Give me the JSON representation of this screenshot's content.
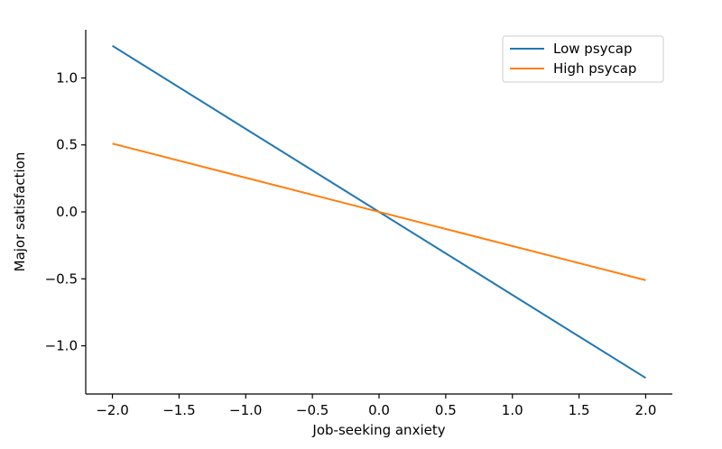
{
  "chart_data": {
    "type": "line",
    "xlabel": "Job-seeking anxiety",
    "ylabel": "Major satisfaction",
    "xlim": [
      -2.2,
      2.2
    ],
    "ylim": [
      -1.36,
      1.36
    ],
    "xticks": [
      -2.0,
      -1.5,
      -1.0,
      -0.5,
      0.0,
      0.5,
      1.0,
      1.5,
      2.0
    ],
    "xtick_labels": [
      "−2.0",
      "−1.5",
      "−1.0",
      "−0.5",
      "0.0",
      "0.5",
      "1.0",
      "1.5",
      "2.0"
    ],
    "yticks": [
      -1.0,
      -0.5,
      0.0,
      0.5,
      1.0
    ],
    "ytick_labels": [
      "−1.0",
      "−0.5",
      "0.0",
      "0.5",
      "1.0"
    ],
    "legend_position": "top-right",
    "grid": false,
    "series": [
      {
        "name": "Low psycap",
        "color": "#1f77b4",
        "x": [
          -2.0,
          2.0
        ],
        "y": [
          1.24,
          -1.24
        ]
      },
      {
        "name": "High psycap",
        "color": "#ff7f0e",
        "x": [
          -2.0,
          2.0
        ],
        "y": [
          0.51,
          -0.51
        ]
      }
    ]
  }
}
